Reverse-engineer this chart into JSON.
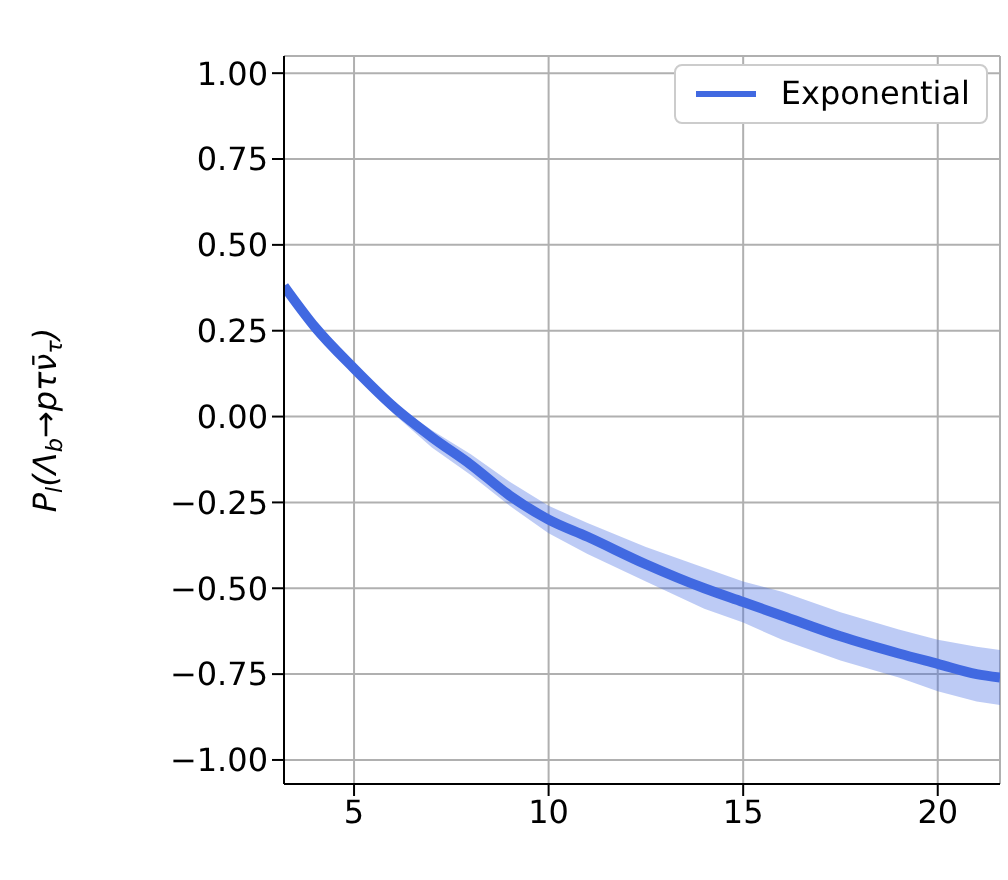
{
  "chart_data": {
    "type": "line",
    "ylabel": "P$_{l}$(Λ$_{b}$→pτν̄$_{τ}$)",
    "x": [
      3.2,
      4,
      5,
      6,
      7,
      8,
      9,
      10,
      11,
      12.5,
      14,
      15,
      16,
      17.5,
      19,
      20,
      21,
      21.6
    ],
    "series": [
      {
        "name": "Exponential",
        "color": "#4169e1",
        "values": [
          0.38,
          0.26,
          0.14,
          0.03,
          -0.06,
          -0.14,
          -0.23,
          -0.3,
          -0.35,
          -0.43,
          -0.5,
          -0.54,
          -0.58,
          -0.64,
          -0.69,
          -0.72,
          -0.75,
          -0.76
        ],
        "lower": [
          0.37,
          0.25,
          0.13,
          0.01,
          -0.09,
          -0.17,
          -0.26,
          -0.34,
          -0.4,
          -0.48,
          -0.56,
          -0.6,
          -0.65,
          -0.71,
          -0.76,
          -0.8,
          -0.83,
          -0.84
        ],
        "upper": [
          0.39,
          0.27,
          0.15,
          0.04,
          -0.04,
          -0.11,
          -0.19,
          -0.26,
          -0.31,
          -0.38,
          -0.44,
          -0.48,
          -0.51,
          -0.57,
          -0.62,
          -0.65,
          -0.67,
          -0.68
        ]
      }
    ],
    "xlim": [
      3.2,
      21.6
    ],
    "ylim": [
      -1.07,
      1.05
    ],
    "xticks": [
      5,
      10,
      15,
      20
    ],
    "yticks": [
      {
        "value": -1,
        "label": "−1.00"
      },
      {
        "value": -0.75,
        "label": "−0.75"
      },
      {
        "value": -0.5,
        "label": "−0.50"
      },
      {
        "value": -0.25,
        "label": "−0.25"
      },
      {
        "value": 0,
        "label": "0.00"
      },
      {
        "value": 0.25,
        "label": "0.25"
      },
      {
        "value": 0.5,
        "label": "0.50"
      },
      {
        "value": 0.75,
        "label": "0.75"
      },
      {
        "value": 1,
        "label": "1.00"
      }
    ],
    "grid": true,
    "legend": "top right",
    "marker": "none"
  }
}
